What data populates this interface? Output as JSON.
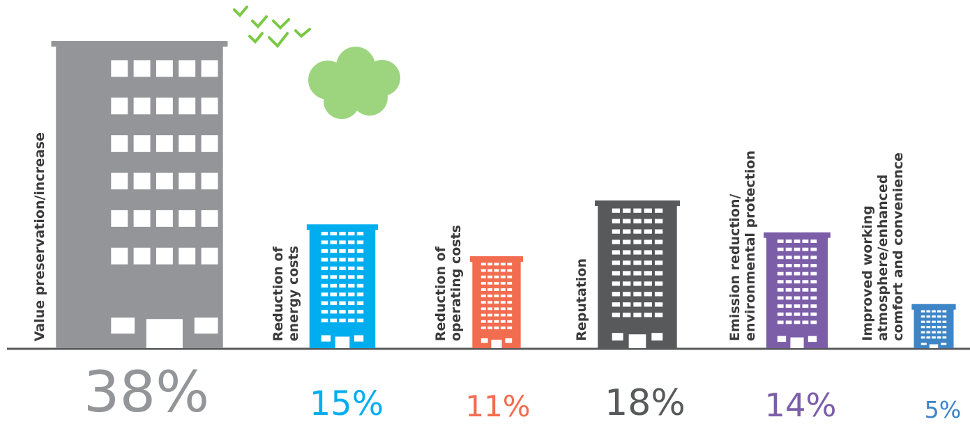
{
  "chart_data": {
    "type": "building-bar",
    "categories": [
      "Value preservation/increase",
      "Reduction of\nenergy costs",
      "Reduction of\noperating costs",
      "Reputation",
      "Emission reduction/\nenvironmental protection",
      "Improved working\natmosphere/enhanced\ncomfort and convenience"
    ],
    "values": [
      38,
      15,
      11,
      18,
      14,
      5
    ],
    "value_labels": [
      "38%",
      "15%",
      "11%",
      "18%",
      "14%",
      "5%"
    ],
    "colors": [
      "#939598",
      "#00aeef",
      "#f26c4f",
      "#58595b",
      "#7b5ea7",
      "#3d85c6"
    ]
  }
}
